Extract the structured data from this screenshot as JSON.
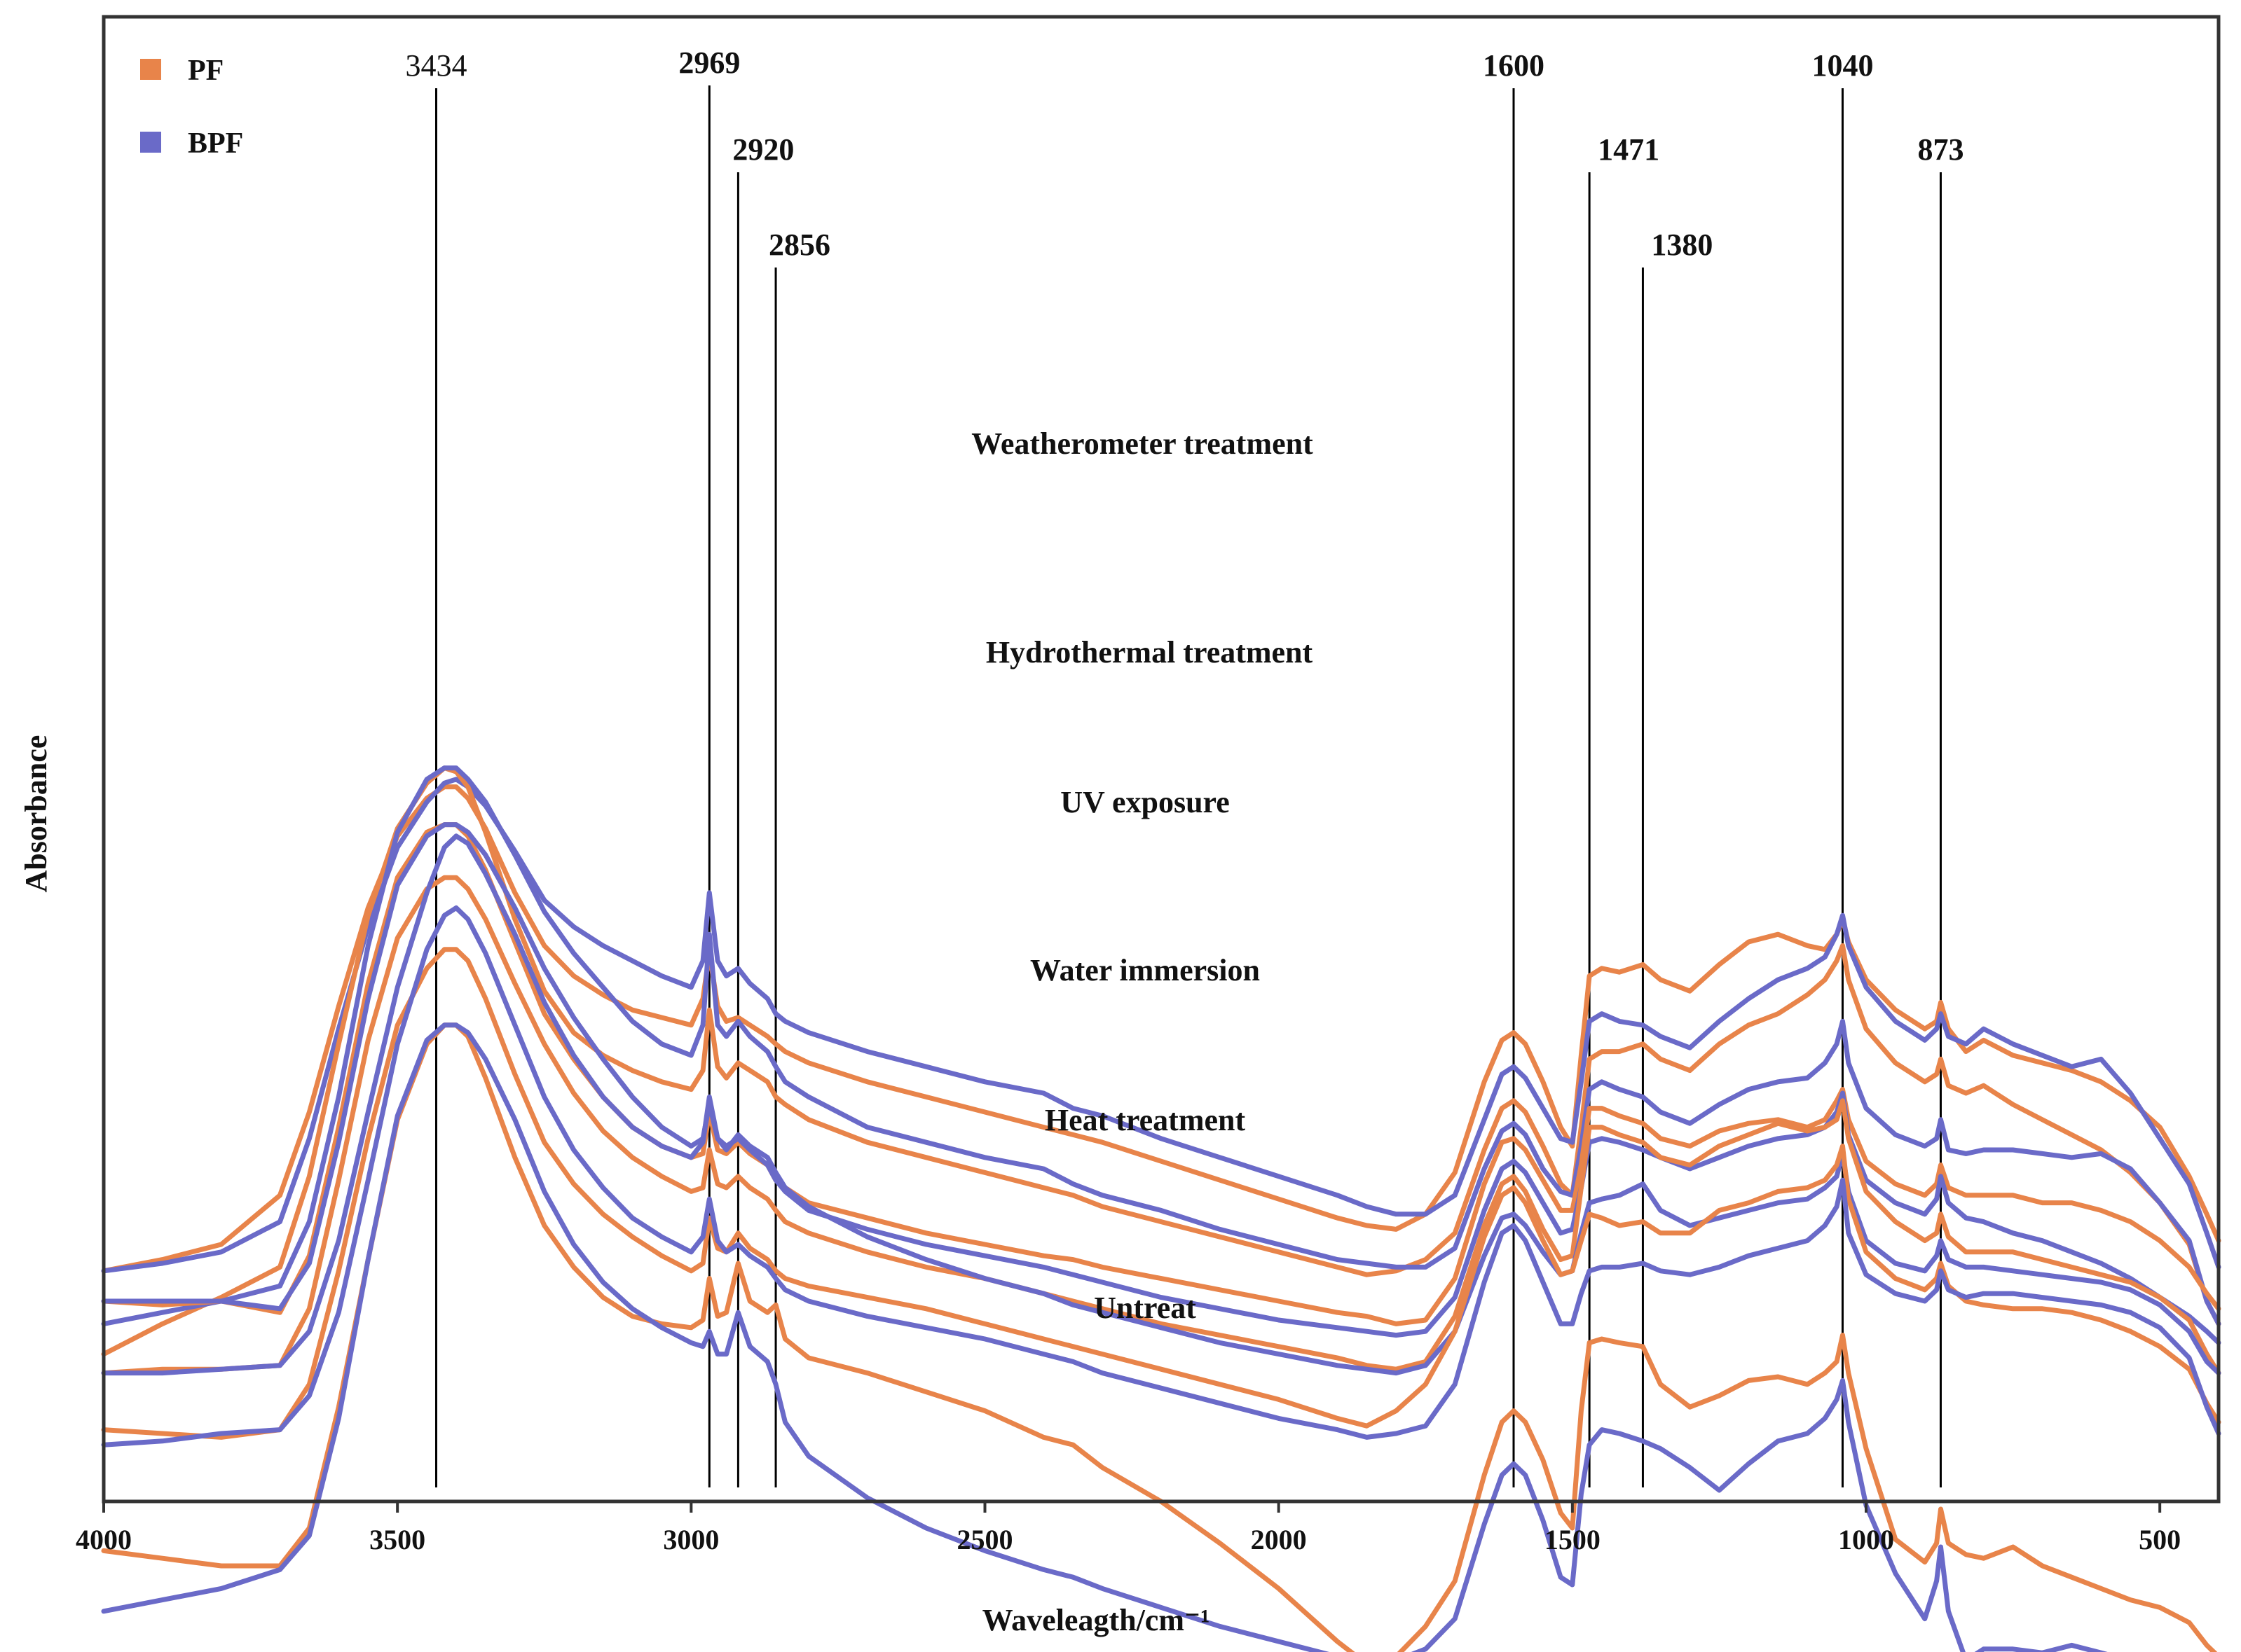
{
  "chart_data": {
    "type": "line",
    "title": "",
    "xlabel": "Waveleagth/cm⁻¹",
    "ylabel": "Absorbance",
    "xlim": [
      4000,
      400
    ],
    "x_reversed": true,
    "x_ticks": [
      4000,
      3500,
      3000,
      2500,
      2000,
      1500,
      1000,
      500
    ],
    "x_tick_labels": [
      "4000",
      "3500",
      "3000",
      "2500",
      "2000",
      "1500",
      "1000",
      "500"
    ],
    "y_ticks_visible": false,
    "grid": false,
    "legend": {
      "position": "top-left",
      "entries": [
        {
          "label": "PF",
          "color": "#E8844A"
        },
        {
          "label": "BPF",
          "color": "#6A6AC8"
        }
      ]
    },
    "peak_markers": [
      {
        "value": 3434,
        "label": "3434"
      },
      {
        "value": 2969,
        "label": "2969"
      },
      {
        "value": 2920,
        "label": "2920"
      },
      {
        "value": 2856,
        "label": "2856"
      },
      {
        "value": 1600,
        "label": "1600"
      },
      {
        "value": 1471,
        "label": "1471"
      },
      {
        "value": 1380,
        "label": "1380"
      },
      {
        "value": 1040,
        "label": "1040"
      },
      {
        "value": 873,
        "label": "873"
      }
    ],
    "curve_x": [
      4000,
      3900,
      3800,
      3700,
      3650,
      3600,
      3550,
      3500,
      3450,
      3420,
      3400,
      3380,
      3350,
      3300,
      3250,
      3200,
      3150,
      3100,
      3050,
      3000,
      2980,
      2969,
      2955,
      2940,
      2920,
      2900,
      2870,
      2856,
      2840,
      2800,
      2700,
      2600,
      2500,
      2400,
      2350,
      2300,
      2200,
      2100,
      2000,
      1900,
      1850,
      1800,
      1750,
      1700,
      1650,
      1620,
      1600,
      1580,
      1550,
      1520,
      1500,
      1485,
      1471,
      1450,
      1420,
      1380,
      1350,
      1300,
      1250,
      1200,
      1150,
      1100,
      1070,
      1050,
      1040,
      1030,
      1000,
      950,
      900,
      880,
      873,
      860,
      830,
      800,
      750,
      700,
      650,
      600,
      550,
      500,
      450,
      420,
      400
    ],
    "series": [
      {
        "group": "Weatherometer treatment",
        "name": "PF",
        "color": "#E8844A",
        "values": [
          3.8,
          4.1,
          4.5,
          5.8,
          8,
          10.8,
          13.4,
          15.3,
          16.3,
          16.6,
          16.6,
          16.3,
          15.5,
          13.8,
          12.4,
          11.6,
          11.1,
          10.7,
          10.5,
          10.3,
          11,
          12.2,
          10.8,
          10.4,
          10.5,
          10.3,
          10,
          9.8,
          9.6,
          9.3,
          8.8,
          8.4,
          8,
          7.6,
          7.4,
          7.2,
          6.7,
          6.2,
          5.7,
          5.2,
          5,
          4.9,
          5.3,
          6.4,
          8.8,
          9.9,
          10.1,
          9.8,
          8.8,
          7.6,
          7.1,
          9.5,
          11.6,
          11.8,
          11.7,
          11.9,
          11.5,
          11.2,
          11.9,
          12.5,
          12.7,
          12.4,
          12.3,
          12.7,
          13.1,
          12.5,
          11.5,
          10.7,
          10.2,
          10.4,
          10.9,
          10.2,
          9.6,
          9.9,
          9.5,
          9.3,
          9.1,
          8.8,
          8.3,
          7.6,
          6.3,
          5.3,
          4.6
        ]
      },
      {
        "group": "Weatherometer treatment",
        "name": "BPF",
        "color": "#6A6AC8",
        "values": [
          3.8,
          4,
          4.3,
          5.1,
          7.3,
          10.2,
          12.9,
          15,
          16.2,
          16.7,
          16.8,
          16.6,
          16.1,
          14.9,
          13.6,
          12.9,
          12.4,
          12,
          11.6,
          11.3,
          12,
          13.8,
          12,
          11.6,
          11.8,
          11.4,
          11,
          10.6,
          10.4,
          10.1,
          9.6,
          9.2,
          8.8,
          8.5,
          8.1,
          7.9,
          7.3,
          6.8,
          6.3,
          5.8,
          5.5,
          5.3,
          5.3,
          5.8,
          7.8,
          9,
          9.2,
          8.9,
          8.1,
          7.3,
          7.2,
          8.8,
          10.4,
          10.6,
          10.4,
          10.3,
          10,
          9.7,
          10.4,
          11,
          11.5,
          11.8,
          12.1,
          12.7,
          13.2,
          12.4,
          11.3,
          10.4,
          9.9,
          10.2,
          10.6,
          10,
          9.8,
          10.2,
          9.8,
          9.5,
          9.2,
          9.4,
          8.5,
          7.3,
          6.1,
          4.8,
          3.9
        ]
      },
      {
        "group": "Hydrothermal treatment",
        "name": "PF",
        "color": "#E8844A",
        "values": [
          1.6,
          2.4,
          3.1,
          3.9,
          6.3,
          9.8,
          13.2,
          15.5,
          16.7,
          17.1,
          17,
          16.6,
          15.4,
          13.1,
          11.2,
          10.1,
          9.5,
          9.1,
          8.8,
          8.6,
          9.1,
          10.7,
          9.2,
          8.9,
          9.3,
          9.1,
          8.8,
          8.4,
          8.2,
          7.8,
          7.2,
          6.8,
          6.4,
          6,
          5.8,
          5.5,
          5.1,
          4.7,
          4.3,
          3.9,
          3.7,
          3.8,
          4.1,
          4.8,
          7,
          8.1,
          8.3,
          8,
          7.1,
          6.1,
          5.8,
          7.6,
          9.4,
          9.6,
          9.6,
          9.8,
          9.4,
          9.1,
          9.8,
          10.3,
          10.6,
          11.1,
          11.5,
          12,
          12.4,
          11.5,
          10.2,
          9.3,
          8.8,
          9,
          9.4,
          8.7,
          8.5,
          8.7,
          8.2,
          7.8,
          7.4,
          7,
          6.4,
          5.6,
          4.5,
          3,
          2.4
        ]
      },
      {
        "group": "Hydrothermal treatment",
        "name": "BPF",
        "color": "#6A6AC8",
        "values": [
          2.4,
          2.7,
          3,
          3.4,
          5.1,
          8.4,
          12.4,
          15.4,
          16.8,
          17.1,
          17.1,
          16.8,
          16.2,
          14.8,
          13.3,
          12.2,
          11.3,
          10.4,
          9.8,
          9.5,
          10.3,
          12.7,
          10.3,
          10,
          10.4,
          10,
          9.6,
          9.2,
          8.8,
          8.4,
          7.6,
          7.2,
          6.8,
          6.5,
          6.1,
          5.8,
          5.4,
          4.9,
          4.5,
          4.1,
          4,
          3.9,
          3.9,
          4.4,
          6.5,
          7.5,
          7.7,
          7.4,
          6.5,
          5.9,
          5.8,
          7.1,
          8.6,
          8.8,
          8.6,
          8.4,
          8,
          7.7,
          8.2,
          8.6,
          8.8,
          8.9,
          9.3,
          9.8,
          10.4,
          9.3,
          8.1,
          7.4,
          7.1,
          7.3,
          7.8,
          7,
          6.9,
          7,
          7,
          6.9,
          6.8,
          6.9,
          6.5,
          5.6,
          4.6,
          3,
          2.4
        ]
      },
      {
        "group": "UV exposure",
        "name": "PF",
        "color": "#E8844A",
        "values": [
          3,
          2.9,
          3,
          2.7,
          4.2,
          7.6,
          11.4,
          14.2,
          15.4,
          15.6,
          15.6,
          15.3,
          14.4,
          12.5,
          10.6,
          9.4,
          8.4,
          7.6,
          7.1,
          6.8,
          6.9,
          8,
          7,
          6.9,
          7.2,
          6.9,
          6.6,
          6.2,
          6,
          5.6,
          5.2,
          4.8,
          4.5,
          4.2,
          4.1,
          3.9,
          3.6,
          3.3,
          3,
          2.7,
          2.6,
          2.4,
          2.5,
          3.6,
          6.1,
          7.2,
          7.3,
          7,
          6.2,
          5.4,
          5.4,
          6.6,
          8.1,
          8.1,
          7.9,
          7.7,
          7.3,
          7.1,
          7.5,
          7.7,
          7.8,
          7.6,
          7.8,
          8.3,
          8.6,
          7.8,
          6.7,
          6.1,
          5.8,
          6.1,
          6.6,
          6,
          5.8,
          5.8,
          5.8,
          5.6,
          5.6,
          5.4,
          5.1,
          4.6,
          3.9,
          3.2,
          2.8
        ]
      },
      {
        "group": "UV exposure",
        "name": "BPF",
        "color": "#6A6AC8",
        "values": [
          3,
          3,
          3,
          2.8,
          4,
          7.2,
          11,
          14,
          15.3,
          15.6,
          15.6,
          15.4,
          14.8,
          13.4,
          11.8,
          10.5,
          9.4,
          8.4,
          7.6,
          7.1,
          7.3,
          8.2,
          7.3,
          7.1,
          7.3,
          7,
          6.6,
          6.2,
          5.9,
          5.4,
          4.9,
          4.5,
          4.2,
          3.9,
          3.7,
          3.5,
          3.1,
          2.8,
          2.5,
          2.3,
          2.2,
          2.1,
          2.2,
          3.1,
          5.4,
          6.5,
          6.7,
          6.4,
          5.6,
          4.8,
          4.9,
          6,
          7.2,
          7.3,
          7.2,
          7,
          6.8,
          6.5,
          6.8,
          7.1,
          7.3,
          7.4,
          7.6,
          8,
          8.5,
          7.4,
          6.2,
          5.6,
          5.3,
          5.7,
          6.3,
          5.6,
          5.2,
          5.1,
          4.8,
          4.6,
          4.3,
          4,
          3.6,
          3.1,
          2.6,
          2.2,
          1.9
        ]
      },
      {
        "group": "Water immersion",
        "name": "PF",
        "color": "#E8844A",
        "values": [
          1.1,
          1.2,
          1.2,
          1.3,
          2.8,
          6.2,
          9.9,
          12.6,
          13.9,
          14.2,
          14.2,
          13.9,
          13.1,
          11.4,
          9.8,
          8.5,
          7.5,
          6.8,
          6.3,
          5.9,
          6,
          7,
          6.1,
          6,
          6.3,
          6,
          5.7,
          5.4,
          5.1,
          4.8,
          4.3,
          3.9,
          3.6,
          3.2,
          3,
          2.8,
          2.4,
          2.1,
          1.8,
          1.5,
          1.3,
          1.2,
          1.4,
          2.6,
          5,
          6.1,
          6.3,
          5.9,
          4.9,
          4.1,
          4.2,
          6,
          7.6,
          7.6,
          7.4,
          7.2,
          6.8,
          6.6,
          7.1,
          7.4,
          7.7,
          7.5,
          7.6,
          7.8,
          8.3,
          7.3,
          5.9,
          5.1,
          4.6,
          4.8,
          5.3,
          4.7,
          4.3,
          4.3,
          4.3,
          4.1,
          3.9,
          3.7,
          3.5,
          3.1,
          2.5,
          1.6,
          1.1
        ]
      },
      {
        "group": "Water immersion",
        "name": "BPF",
        "color": "#6A6AC8",
        "values": [
          1.1,
          1.1,
          1.2,
          1.3,
          2.2,
          4.6,
          8,
          11.3,
          13.8,
          15,
          15.3,
          15.1,
          14.3,
          12.7,
          10.9,
          9.5,
          8.4,
          7.6,
          7.1,
          6.8,
          7.2,
          8.4,
          7.3,
          7,
          7.4,
          7.1,
          6.8,
          6.4,
          6,
          5.5,
          4.7,
          4.1,
          3.6,
          3.2,
          2.9,
          2.7,
          2.3,
          1.9,
          1.6,
          1.3,
          1.2,
          1.1,
          1.3,
          2.2,
          4.2,
          5.2,
          5.3,
          5,
          4.3,
          3.7,
          3.8,
          4.8,
          5.6,
          5.7,
          5.8,
          6.1,
          5.4,
          5,
          5.2,
          5.4,
          5.6,
          5.7,
          6,
          6.3,
          6.9,
          5.9,
          4.6,
          4,
          3.8,
          4.2,
          4.6,
          4.1,
          3.9,
          3.9,
          3.8,
          3.7,
          3.6,
          3.5,
          3.3,
          2.9,
          2.2,
          1.4,
          1.1
        ]
      },
      {
        "group": "Heat treatment",
        "name": "PF",
        "color": "#E8844A",
        "values": [
          -0.4,
          -0.5,
          -0.6,
          -0.4,
          0.8,
          3.8,
          7.3,
          10.3,
          11.8,
          12.3,
          12.3,
          12,
          11,
          9,
          7.2,
          6.1,
          5.3,
          4.7,
          4.2,
          3.8,
          4,
          5.2,
          4.4,
          4.3,
          4.8,
          4.4,
          4.1,
          3.8,
          3.6,
          3.4,
          3.1,
          2.8,
          2.4,
          2,
          1.8,
          1.6,
          1.2,
          0.8,
          0.4,
          -0.1,
          -0.3,
          0.1,
          0.8,
          2.2,
          4.7,
          5.8,
          6,
          5.6,
          4.6,
          3.7,
          3.8,
          4.6,
          5.3,
          5.2,
          5,
          5.1,
          4.8,
          4.8,
          5.4,
          5.6,
          5.9,
          6,
          6.2,
          6.6,
          7.1,
          5.7,
          4.3,
          3.6,
          3.3,
          3.6,
          4,
          3.4,
          3,
          2.9,
          2.8,
          2.8,
          2.7,
          2.5,
          2.2,
          1.8,
          1.2,
          0.3,
          -0.2
        ]
      },
      {
        "group": "Heat treatment",
        "name": "BPF",
        "color": "#6A6AC8",
        "values": [
          -0.8,
          -0.7,
          -0.5,
          -0.4,
          0.5,
          2.7,
          6.2,
          9.8,
          12.3,
          13.2,
          13.4,
          13.1,
          12.2,
          10.3,
          8.4,
          7,
          6,
          5.2,
          4.7,
          4.3,
          4.7,
          5.7,
          4.6,
          4.3,
          4.5,
          4.2,
          3.9,
          3.6,
          3.3,
          3,
          2.6,
          2.3,
          2,
          1.6,
          1.4,
          1.1,
          0.7,
          0.3,
          -0.1,
          -0.4,
          -0.6,
          -0.5,
          -0.3,
          0.8,
          3.5,
          4.8,
          5,
          4.6,
          3.5,
          2.4,
          2.4,
          3.2,
          3.8,
          3.9,
          3.9,
          4,
          3.8,
          3.7,
          3.9,
          4.2,
          4.4,
          4.6,
          5,
          5.5,
          6.2,
          4.8,
          3.7,
          3.2,
          3,
          3.3,
          3.8,
          3.3,
          3.1,
          3.2,
          3.2,
          3.1,
          3,
          2.9,
          2.7,
          2.3,
          1.5,
          0.2,
          -0.5
        ]
      },
      {
        "group": "Untreat",
        "name": "PF",
        "color": "#E8844A",
        "values": [
          -3.6,
          -3.8,
          -4,
          -4,
          -3,
          0.2,
          4.1,
          7.8,
          9.8,
          10.3,
          10.3,
          10,
          8.9,
          6.8,
          5,
          3.9,
          3.1,
          2.6,
          2.4,
          2.3,
          2.5,
          3.6,
          2.6,
          2.7,
          4,
          3,
          2.7,
          2.9,
          2,
          1.5,
          1.1,
          0.6,
          0.1,
          -0.6,
          -0.8,
          -1.4,
          -2.3,
          -3.4,
          -4.6,
          -6,
          -6.6,
          -6.4,
          -5.6,
          -4.4,
          -1.6,
          -0.2,
          0.1,
          -0.2,
          -1.2,
          -2.6,
          -3,
          0.1,
          1.9,
          2,
          1.9,
          1.8,
          0.8,
          0.2,
          0.5,
          0.9,
          1,
          0.8,
          1.1,
          1.4,
          2.1,
          1.1,
          -0.9,
          -3.3,
          -3.9,
          -3.4,
          -2.5,
          -3.4,
          -3.7,
          -3.8,
          -3.5,
          -4,
          -4.3,
          -4.6,
          -4.9,
          -5.1,
          -5.5,
          -6.1,
          -6.4
        ]
      },
      {
        "group": "Untreat",
        "name": "BPF",
        "color": "#6A6AC8",
        "values": [
          -5.2,
          -4.9,
          -4.6,
          -4.1,
          -3.2,
          -0.1,
          4.1,
          7.9,
          9.9,
          10.3,
          10.3,
          10.1,
          9.4,
          7.8,
          5.9,
          4.5,
          3.5,
          2.8,
          2.3,
          1.9,
          1.8,
          2.2,
          1.6,
          1.6,
          2.7,
          1.8,
          1.4,
          0.8,
          -0.2,
          -1.1,
          -2.2,
          -3,
          -3.6,
          -4.1,
          -4.3,
          -4.6,
          -5.1,
          -5.6,
          -6,
          -6.4,
          -6.6,
          -6.5,
          -6.2,
          -5.4,
          -2.9,
          -1.6,
          -1.3,
          -1.6,
          -2.8,
          -4.3,
          -4.5,
          -2.1,
          -0.8,
          -0.4,
          -0.5,
          -0.7,
          -0.9,
          -1.4,
          -2,
          -1.3,
          -0.7,
          -0.5,
          -0.1,
          0.4,
          0.9,
          -0.2,
          -2.4,
          -4.2,
          -5.4,
          -4.4,
          -3.5,
          -5.2,
          -6.5,
          -6.2,
          -6.2,
          -6.3,
          -6.1,
          -6.3,
          -6.5,
          -6.8,
          -6.8,
          -6.6,
          -6.6
        ]
      }
    ],
    "annotations": [
      {
        "text": "Weatherometer treatment"
      },
      {
        "text": "Hydrothermal treatment"
      },
      {
        "text": "UV exposure"
      },
      {
        "text": "Water immersion"
      },
      {
        "text": "Heat treatment"
      },
      {
        "text": "Untreat"
      }
    ]
  }
}
